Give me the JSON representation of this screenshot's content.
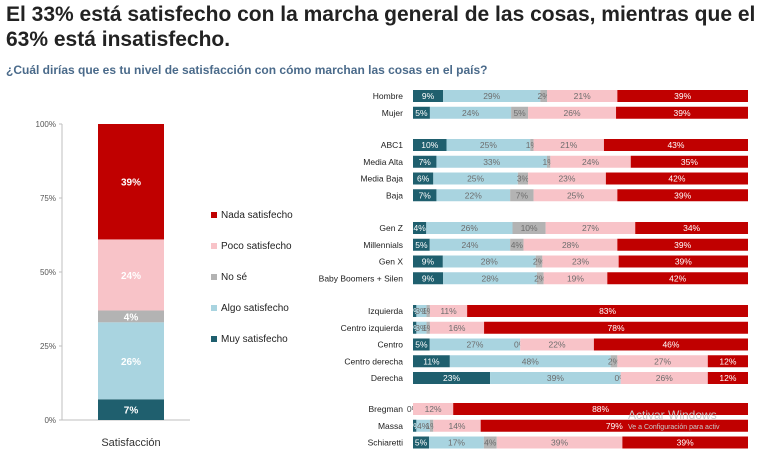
{
  "title": "El 33% está satisfecho con la marcha general de las cosas, mientras que el 63% está insatisfecho.",
  "subtitle": "¿Cuál dirías que es tu nivel de satisfacción con cómo marchan las cosas en el país?",
  "watermark": {
    "line1": "Activar Windows",
    "line2": "Ve a Configuración para activ"
  },
  "colors": {
    "nada": "#c00000",
    "poco": "#f8c3c8",
    "nose": "#b3b3b3",
    "algo": "#a9d4e0",
    "muy": "#1f5f6e"
  },
  "chart_data": [
    {
      "type": "bar",
      "stacked": true,
      "categories": [
        "Satisfacción"
      ],
      "xlabel": "Satisfacción",
      "ylim": [
        0,
        100
      ],
      "yticks": [
        "0%",
        "25%",
        "50%",
        "75%",
        "100%"
      ],
      "legend": [
        "Nada satisfecho",
        "Poco satisfecho",
        "No sé",
        "Algo satisfecho",
        "Muy satisfecho"
      ],
      "series": [
        {
          "name": "Muy satisfecho",
          "key": "muy",
          "values": [
            7
          ],
          "label": "7%"
        },
        {
          "name": "Algo satisfecho",
          "key": "algo",
          "values": [
            26
          ],
          "label": "26%"
        },
        {
          "name": "No sé",
          "key": "nose",
          "values": [
            4
          ],
          "label": "4%"
        },
        {
          "name": "Poco satisfecho",
          "key": "poco",
          "values": [
            24
          ],
          "label": "24%"
        },
        {
          "name": "Nada satisfecho",
          "key": "nada",
          "values": [
            39
          ],
          "label": "39%"
        }
      ]
    },
    {
      "type": "bar",
      "orientation": "horizontal",
      "stacked": true,
      "segment_order": [
        "muy",
        "algo",
        "nose",
        "poco",
        "nada"
      ],
      "groups": [
        {
          "rows": [
            {
              "label": "Hombre",
              "values": [
                9,
                29,
                2,
                21,
                39
              ]
            },
            {
              "label": "Mujer",
              "values": [
                5,
                24,
                5,
                26,
                39
              ]
            }
          ]
        },
        {
          "rows": [
            {
              "label": "ABC1",
              "values": [
                10,
                25,
                1,
                21,
                43
              ]
            },
            {
              "label": "Media Alta",
              "values": [
                7,
                33,
                1,
                24,
                35
              ]
            },
            {
              "label": "Media Baja",
              "values": [
                6,
                25,
                3,
                23,
                42
              ]
            },
            {
              "label": "Baja",
              "values": [
                7,
                22,
                7,
                25,
                39
              ]
            }
          ]
        },
        {
          "rows": [
            {
              "label": "Gen Z",
              "values": [
                4,
                26,
                10,
                27,
                34
              ]
            },
            {
              "label": "Millennials",
              "values": [
                5,
                24,
                4,
                28,
                39
              ]
            },
            {
              "label": "Gen X",
              "values": [
                9,
                28,
                2,
                23,
                39
              ]
            },
            {
              "label": "Baby Boomers + Silen",
              "values": [
                9,
                28,
                2,
                19,
                42
              ]
            }
          ]
        },
        {
          "rows": [
            {
              "label": "Izquierda",
              "values": [
                1,
                3,
                1,
                11,
                83
              ]
            },
            {
              "label": "Centro izquierda",
              "values": [
                1,
                3,
                1,
                16,
                78
              ]
            },
            {
              "label": "Centro",
              "values": [
                5,
                27,
                0,
                22,
                46
              ]
            },
            {
              "label": "Centro derecha",
              "values": [
                11,
                48,
                2,
                27,
                12
              ]
            },
            {
              "label": "Derecha",
              "values": [
                23,
                39,
                0,
                26,
                12
              ]
            }
          ]
        },
        {
          "rows": [
            {
              "label": "Bregman",
              "values": [
                0,
                0,
                0,
                12,
                88
              ]
            },
            {
              "label": "Massa",
              "values": [
                1,
                4,
                1,
                14,
                79
              ]
            },
            {
              "label": "Schiaretti",
              "values": [
                5,
                17,
                4,
                39,
                39
              ]
            }
          ]
        }
      ]
    }
  ]
}
